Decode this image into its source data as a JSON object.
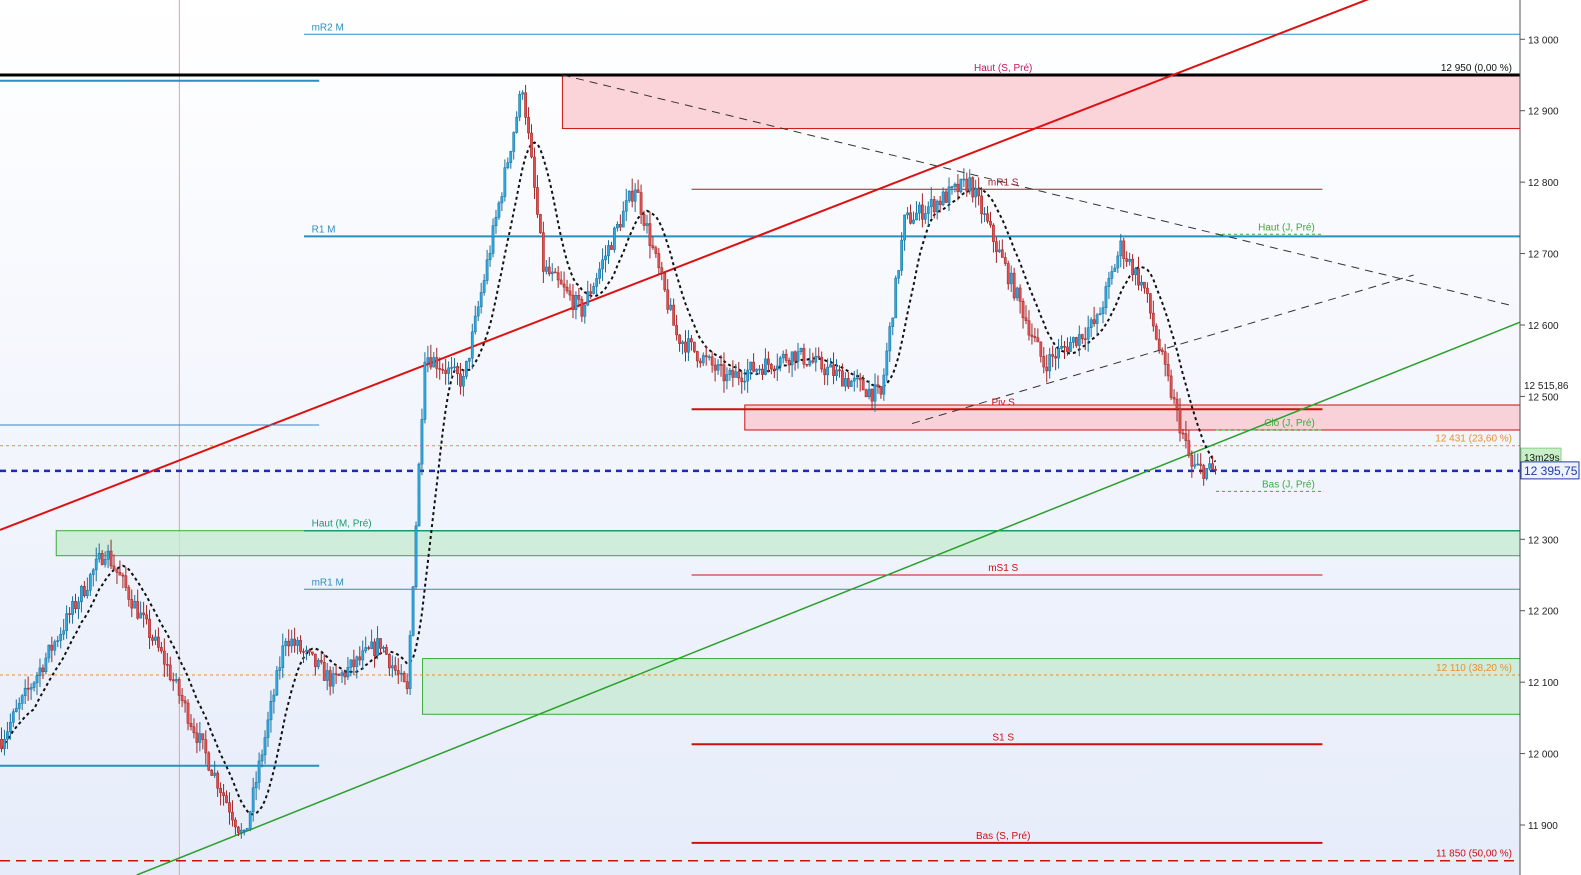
{
  "chart_data": {
    "type": "candlestick",
    "ylim": [
      11830,
      13055
    ],
    "y_ticks": [
      {
        "value": 13000,
        "label": "13 000"
      },
      {
        "value": 12900,
        "label": "12 900"
      },
      {
        "value": 12800,
        "label": "12 800"
      },
      {
        "value": 12700,
        "label": "12 700"
      },
      {
        "value": 12600,
        "label": "12 600"
      },
      {
        "value": 12500,
        "label": "12 500"
      },
      {
        "value": 12300,
        "label": "12 300"
      },
      {
        "value": 12200,
        "label": "12 200"
      },
      {
        "value": 12100,
        "label": "12 100"
      },
      {
        "value": 12000,
        "label": "12 000"
      },
      {
        "value": 11900,
        "label": "11 900"
      }
    ],
    "price_tags": [
      {
        "label": "12 515,86",
        "value": 12515.86,
        "color": "#222222"
      },
      {
        "label": "13m29s",
        "value": 12415,
        "color": "#1b1b1b",
        "bg": "#c8f0c8"
      },
      {
        "label": "12 395,75",
        "value": 12395.75,
        "color": "#1e3ca8"
      }
    ],
    "levels": [
      {
        "label": "mR2 M",
        "value": 13007,
        "color": "#2a8fbf",
        "width": 1,
        "x0": 0.2,
        "x1": 1.0,
        "label_x": 0.205,
        "anchor": "start"
      },
      {
        "label": "Haut (S, Pré)",
        "value": 12950,
        "color": "#000000",
        "width": 3,
        "x0": 0.0,
        "x1": 1.0,
        "label_x": 0.66,
        "anchor": "middle",
        "label_color": "#c2185b"
      },
      {
        "label": "R1 M",
        "value": 12724,
        "color": "#2a8fbf",
        "width": 2,
        "x0": 0.2,
        "x1": 1.0,
        "label_x": 0.205,
        "anchor": "start"
      },
      {
        "label": "mR1 S",
        "value": 12790,
        "color": "#a02030",
        "width": 1,
        "x0": 0.455,
        "x1": 0.87,
        "label_x": 0.66,
        "anchor": "middle"
      },
      {
        "label": "Haut (J, Pré)",
        "value": 12727,
        "color": "#3aaa3a",
        "width": 1,
        "x0": 0.8,
        "x1": 0.87,
        "label_x": 0.865,
        "anchor": "end",
        "dash": "3,3"
      },
      {
        "label": "Piv S",
        "value": 12482,
        "color": "#cc1010",
        "width": 2,
        "x0": 0.455,
        "x1": 0.87,
        "label_x": 0.66,
        "anchor": "middle"
      },
      {
        "label": "Clô (J, Pré)",
        "value": 12453,
        "color": "#3aaa3a",
        "width": 1,
        "x0": 0.8,
        "x1": 0.87,
        "label_x": 0.865,
        "anchor": "end",
        "dash": "3,3"
      },
      {
        "label": "Bas (J, Pré)",
        "value": 12367,
        "color": "#3aaa3a",
        "width": 1,
        "x0": 0.8,
        "x1": 0.87,
        "label_x": 0.865,
        "anchor": "end",
        "dash": "3,3"
      },
      {
        "label": "Haut (M, Pré)",
        "value": 12312,
        "color": "#1a9a6a",
        "width": 1.5,
        "x0": 0.2,
        "x1": 1.0,
        "label_x": 0.205,
        "anchor": "start"
      },
      {
        "label": "mR1 M",
        "value": 12230,
        "color": "#2a8fbf",
        "width": 1,
        "x0": 0.2,
        "x1": 1.0,
        "label_x": 0.205,
        "anchor": "start"
      },
      {
        "label": "mS1 S",
        "value": 12250,
        "color": "#cc1010",
        "width": 1,
        "x0": 0.455,
        "x1": 0.87,
        "label_x": 0.66,
        "anchor": "middle"
      },
      {
        "label": "S1 S",
        "value": 12013,
        "color": "#cc1010",
        "width": 2,
        "x0": 0.455,
        "x1": 0.87,
        "label_x": 0.66,
        "anchor": "middle"
      },
      {
        "label": "Bas (S, Pré)",
        "value": 11875,
        "color": "#cc1010",
        "width": 2,
        "x0": 0.455,
        "x1": 0.87,
        "label_x": 0.66,
        "anchor": "middle"
      }
    ],
    "fib_levels": [
      {
        "label": "12 950 (0,00 %)",
        "value": 12950,
        "color": "#000000"
      },
      {
        "label": "12 431 (23,60 %)",
        "value": 12431,
        "color": "#e8902c"
      },
      {
        "label": "12 110 (38,20 %)",
        "value": 12110,
        "color": "#e8902c"
      },
      {
        "label": "11 850 (50,00 %)",
        "value": 11850,
        "color": "#cc1010"
      }
    ],
    "current_price": 12395.75,
    "zones": [
      {
        "name": "resistance-top",
        "y0": 12875,
        "y1": 12950,
        "x0": 0.37,
        "x1": 1.0,
        "fill": "#f9c6cc",
        "stroke": "#cc1010"
      },
      {
        "name": "resistance-piv",
        "y0": 12453,
        "y1": 12488,
        "x0": 0.49,
        "x1": 1.0,
        "fill": "#f9c6cc",
        "stroke": "#cc1010"
      },
      {
        "name": "support-high",
        "y0": 12277,
        "y1": 12312,
        "x0": 0.037,
        "x1": 1.0,
        "fill": "#c6ead0",
        "stroke": "#3aaa3a"
      },
      {
        "name": "support-low",
        "y0": 12055,
        "y1": 12133,
        "x0": 0.278,
        "x1": 1.0,
        "fill": "#c6ead0",
        "stroke": "#3aaa3a"
      }
    ],
    "trendlines": [
      {
        "name": "red-trend",
        "color": "#dd1111",
        "width": 2,
        "dash": "",
        "p0": [
          0.0,
          12313
        ],
        "p1": [
          0.9,
          13056
        ]
      },
      {
        "name": "green-trend",
        "color": "#2aa02a",
        "width": 1.5,
        "dash": "",
        "p0": [
          0.09,
          11830
        ],
        "p1": [
          1.0,
          12604
        ]
      },
      {
        "name": "desc-trend",
        "color": "#333333",
        "width": 1,
        "dash": "8,6",
        "p0": [
          0.37,
          12950
        ],
        "p1": [
          0.993,
          12628
        ]
      },
      {
        "name": "asc-trend",
        "color": "#333333",
        "width": 1,
        "dash": "8,6",
        "p0": [
          0.6,
          12462
        ],
        "p1": [
          0.93,
          12670
        ]
      },
      {
        "name": "old-level-1",
        "color": "#2a8fbf",
        "width": 2,
        "dash": "",
        "p0": [
          0.0,
          12942
        ],
        "p1": [
          0.21,
          12942
        ]
      },
      {
        "name": "old-level-2",
        "color": "#2a8fbf",
        "width": 1,
        "dash": "",
        "p0": [
          0.0,
          12460
        ],
        "p1": [
          0.21,
          12460
        ]
      },
      {
        "name": "old-level-3",
        "color": "#2a8fbf",
        "width": 2,
        "dash": "",
        "p0": [
          0.0,
          11983
        ],
        "p1": [
          0.21,
          11983
        ]
      }
    ],
    "vertical_marker": 0.118,
    "ohlc_stats": {
      "start": 12020,
      "anchors": [
        [
          0,
          12020
        ],
        [
          35,
          12285
        ],
        [
          55,
          12130
        ],
        [
          72,
          11970
        ],
        [
          82,
          11880
        ],
        [
          96,
          12165
        ],
        [
          112,
          12100
        ],
        [
          128,
          12155
        ],
        [
          137,
          12085
        ],
        [
          143,
          12560
        ],
        [
          156,
          12520
        ],
        [
          176,
          12935
        ],
        [
          183,
          12680
        ],
        [
          196,
          12620
        ],
        [
          214,
          12795
        ],
        [
          228,
          12585
        ],
        [
          245,
          12525
        ],
        [
          268,
          12560
        ],
        [
          297,
          12500
        ],
        [
          305,
          12745
        ],
        [
          327,
          12800
        ],
        [
          343,
          12640
        ],
        [
          352,
          12545
        ],
        [
          370,
          12605
        ],
        [
          378,
          12710
        ],
        [
          386,
          12650
        ],
        [
          392,
          12550
        ],
        [
          402,
          12400
        ],
        [
          410,
          12395
        ]
      ]
    }
  }
}
